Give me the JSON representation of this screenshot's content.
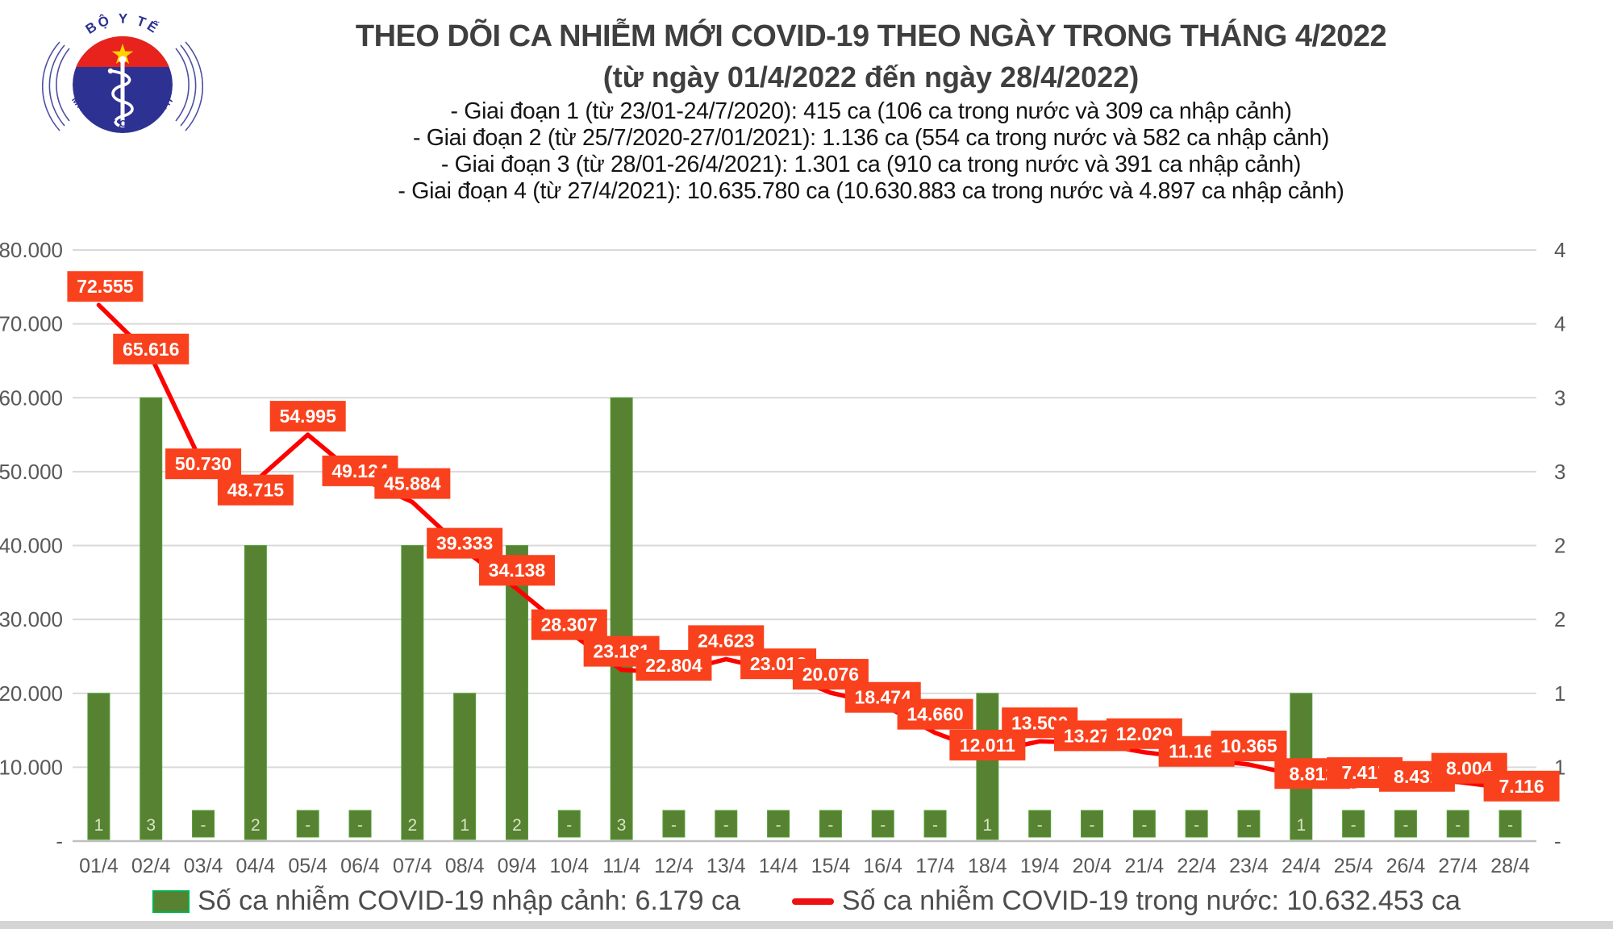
{
  "logo": {
    "top_text": "BỘ Y TẾ",
    "bottom_text": "MINISTRY OF HEALTH",
    "colors": {
      "red": "#e8221c",
      "blue": "#2d3192",
      "star": "#ffd400"
    }
  },
  "header": {
    "title": "THEO DÕI CA NHIỄM MỚI COVID-19 THEO NGÀY TRONG THÁNG 4/2022",
    "subtitle": "(từ ngày 01/4/2022 đến ngày 28/4/2022)",
    "phases": [
      "- Giai đoạn 1 (từ 23/01-24/7/2020): 415 ca (106 ca trong nước và 309 ca nhập cảnh)",
      "- Giai đoạn 2 (từ 25/7/2020-27/01/2021): 1.136 ca (554 ca trong nước và 582 ca nhập cảnh)",
      "- Giai đoạn 3 (từ 28/01-26/4/2021): 1.301 ca (910 ca trong nước và 391 ca nhập cảnh)",
      "- Giai đoạn 4 (từ 27/4/2021): 10.635.780 ca (10.630.883 ca trong nước và 4.897 ca nhập cảnh)"
    ]
  },
  "chart_data": {
    "type": "combo",
    "categories": [
      "01/4",
      "02/4",
      "03/4",
      "04/4",
      "05/4",
      "06/4",
      "07/4",
      "08/4",
      "09/4",
      "10/4",
      "11/4",
      "12/4",
      "13/4",
      "14/4",
      "15/4",
      "16/4",
      "17/4",
      "18/4",
      "19/4",
      "20/4",
      "21/4",
      "22/4",
      "23/4",
      "24/4",
      "25/4",
      "26/4",
      "27/4",
      "28/4"
    ],
    "series": [
      {
        "name": "Số ca nhiễm COVID-19 nhập cảnh",
        "type": "bar",
        "axis": "right",
        "color": "#568232",
        "values": [
          1,
          3,
          0,
          2,
          0,
          0,
          2,
          1,
          2,
          0,
          3,
          0,
          0,
          0,
          0,
          0,
          0,
          1,
          0,
          0,
          0,
          0,
          0,
          1,
          0,
          0,
          0,
          0
        ],
        "value_labels": [
          "1",
          "3",
          "-",
          "2",
          "-",
          "-",
          "2",
          "1",
          "2",
          "-",
          "3",
          "-",
          "-",
          "-",
          "-",
          "-",
          "-",
          "1",
          "-",
          "-",
          "-",
          "-",
          "-",
          "1",
          "-",
          "-",
          "-",
          "-"
        ]
      },
      {
        "name": "Số ca nhiễm COVID-19 trong nước",
        "type": "line",
        "axis": "left",
        "color": "#ff0000",
        "values": [
          72555,
          65616,
          50730,
          48715,
          54995,
          49124,
          45884,
          39333,
          34138,
          28307,
          23181,
          22804,
          24623,
          23012,
          20076,
          18474,
          14660,
          12011,
          13500,
          13271,
          12029,
          11160,
          10365,
          8812,
          7417,
          8431,
          8004,
          7116
        ],
        "point_labels": [
          "72.555",
          "65.616",
          "50.730",
          "48.715",
          "54.995",
          "49.124",
          "45.884",
          "39.333",
          "34.138",
          "28.307",
          "23.181",
          "22.804",
          "24.623",
          "23.012",
          "20.076",
          "18.474",
          "14.660",
          "12.011",
          "13.500",
          "13.271",
          "12.029",
          "11.160",
          "10.365",
          "8.812",
          "7.417",
          "8.431",
          "8.004",
          "7.116"
        ]
      }
    ],
    "left_axis": {
      "ticks": [
        "80.000",
        "70.000",
        "60.000",
        "50.000",
        "40.000",
        "30.000",
        "20.000",
        "10.000",
        "-"
      ],
      "max": 80000,
      "min": 0
    },
    "right_axis": {
      "ticks": [
        "4",
        "4",
        "3",
        "3",
        "2",
        "2",
        "1",
        "1",
        "-"
      ],
      "max": 4,
      "min": 0
    },
    "grid": "horizontal",
    "legend_position": "bottom",
    "colors": {
      "label_bg": "#f9421d",
      "label_text": "#ffffff",
      "line": "#ff0000",
      "bar": "#568232",
      "bar_edge": "#52a033",
      "bar_value_text": "#d6e6c2",
      "gridline": "#d9d9d9",
      "axis_line": "#c0c0c0",
      "tick_text": "#595959"
    }
  },
  "legend": {
    "bar_label": "Số ca nhiễm COVID-19 nhập cảnh: 6.179 ca",
    "line_label": "Số ca nhiễm COVID-19 trong nước: 10.632.453 ca"
  }
}
